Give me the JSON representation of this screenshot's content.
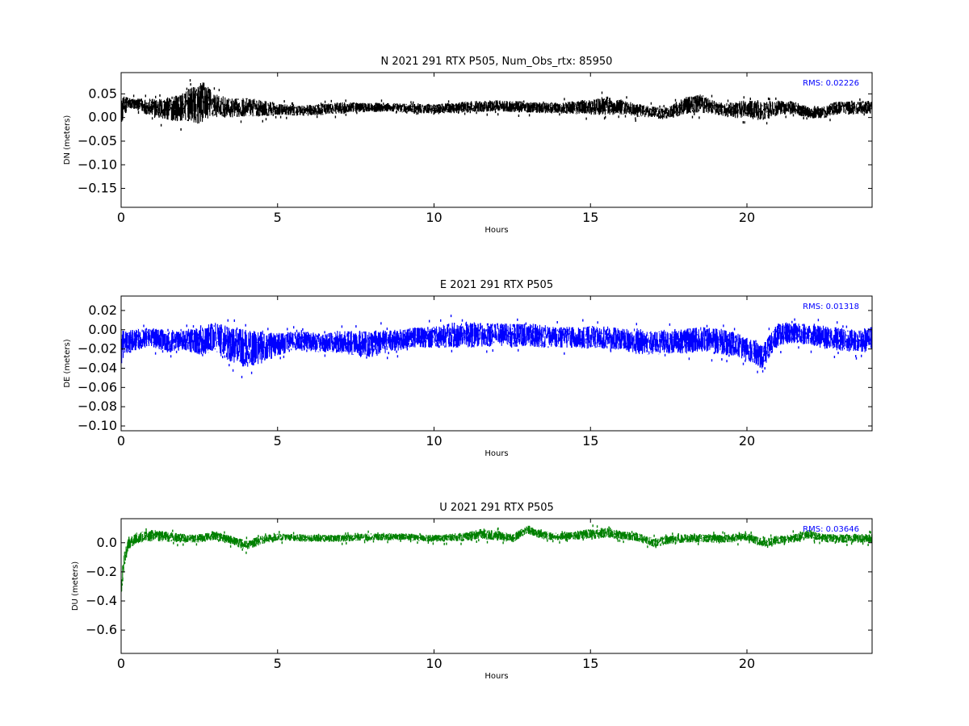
{
  "chart_data": [
    {
      "type": "scatter",
      "title": "N 2021 291 RTX  P505, Num_Obs_rtx: 85950",
      "xlabel": "Hours",
      "ylabel": "DN (meters)",
      "xlim": [
        0,
        24
      ],
      "ylim": [
        -0.19,
        0.095
      ],
      "xticks": [
        0,
        5,
        10,
        15,
        20
      ],
      "xtick_labels": [
        "0",
        "5",
        "10",
        "15",
        "20"
      ],
      "yticks": [
        0.05,
        0.0,
        -0.05,
        -0.1,
        -0.15
      ],
      "ytick_labels": [
        "0.05",
        "0.00",
        "−0.05",
        "−0.10",
        "−0.15"
      ],
      "color": "#000000",
      "annotation": "RMS:  0.02226",
      "annotation_color": "#0000ff",
      "grid": false,
      "series": [
        {
          "x": [
            0,
            0.1,
            0.2,
            0.5,
            1,
            1.5,
            2,
            2.5,
            2.7,
            3,
            3.5,
            4,
            4.5,
            5,
            6,
            7,
            8,
            9,
            10,
            11,
            12,
            13,
            14,
            15,
            15.5,
            16,
            16.5,
            17,
            17.5,
            18,
            18.5,
            19,
            19.5,
            20,
            20.5,
            21,
            21.5,
            22,
            22.5,
            23,
            23.5,
            24
          ],
          "y": [
            0.01,
            0.025,
            0.03,
            0.028,
            0.02,
            0.018,
            0.022,
            0.03,
            0.035,
            0.025,
            0.02,
            0.022,
            0.02,
            0.017,
            0.015,
            0.02,
            0.022,
            0.02,
            0.018,
            0.022,
            0.025,
            0.022,
            0.02,
            0.022,
            0.025,
            0.022,
            0.015,
            0.012,
            0.008,
            0.025,
            0.03,
            0.02,
            0.015,
            0.018,
            0.012,
            0.02,
            0.02,
            0.01,
            0.012,
            0.022,
            0.02,
            0.022
          ],
          "spread": [
            0.03,
            0.02,
            0.014,
            0.012,
            0.02,
            0.025,
            0.03,
            0.045,
            0.04,
            0.025,
            0.02,
            0.02,
            0.018,
            0.012,
            0.012,
            0.012,
            0.01,
            0.01,
            0.01,
            0.012,
            0.012,
            0.012,
            0.012,
            0.016,
            0.02,
            0.016,
            0.014,
            0.012,
            0.014,
            0.018,
            0.02,
            0.014,
            0.016,
            0.02,
            0.02,
            0.016,
            0.014,
            0.012,
            0.014,
            0.014,
            0.014,
            0.014
          ]
        }
      ]
    },
    {
      "type": "scatter",
      "title": "E 2021 291 RTX  P505",
      "xlabel": "Hours",
      "ylabel": "DE (meters)",
      "xlim": [
        0,
        24
      ],
      "ylim": [
        -0.105,
        0.035
      ],
      "xticks": [
        0,
        5,
        10,
        15,
        20
      ],
      "xtick_labels": [
        "0",
        "5",
        "10",
        "15",
        "20"
      ],
      "yticks": [
        0.02,
        0.0,
        -0.02,
        -0.04,
        -0.06,
        -0.08,
        -0.1
      ],
      "ytick_labels": [
        "0.02",
        "0.00",
        "−0.02",
        "−0.04",
        "−0.06",
        "−0.08",
        "−0.10"
      ],
      "color": "#0000ff",
      "annotation": "RMS:  0.01318",
      "annotation_color": "#0000ff",
      "grid": false,
      "series": [
        {
          "x": [
            0,
            0.1,
            0.3,
            0.5,
            1,
            1.5,
            2,
            2.5,
            3,
            3.5,
            4,
            4.5,
            5,
            5.5,
            6,
            6.5,
            7,
            7.5,
            8,
            8.5,
            9,
            9.5,
            10,
            10.5,
            11,
            11.5,
            12,
            12.5,
            13,
            13.5,
            14,
            14.5,
            15,
            15.5,
            16,
            16.5,
            17,
            17.5,
            18,
            18.5,
            19,
            19.5,
            20,
            20.5,
            21,
            21.5,
            22,
            22.5,
            23,
            23.5,
            24
          ],
          "y": [
            -0.02,
            -0.015,
            -0.012,
            -0.01,
            -0.008,
            -0.012,
            -0.01,
            -0.012,
            -0.008,
            -0.015,
            -0.02,
            -0.018,
            -0.015,
            -0.012,
            -0.012,
            -0.015,
            -0.012,
            -0.015,
            -0.015,
            -0.012,
            -0.01,
            -0.008,
            -0.008,
            -0.006,
            -0.005,
            -0.006,
            -0.005,
            -0.006,
            -0.005,
            -0.007,
            -0.008,
            -0.008,
            -0.008,
            -0.008,
            -0.01,
            -0.012,
            -0.014,
            -0.012,
            -0.012,
            -0.01,
            -0.012,
            -0.014,
            -0.02,
            -0.028,
            -0.005,
            -0.003,
            -0.005,
            -0.008,
            -0.01,
            -0.012,
            -0.01
          ],
          "spread": [
            0.02,
            0.014,
            0.012,
            0.011,
            0.01,
            0.012,
            0.011,
            0.014,
            0.016,
            0.018,
            0.02,
            0.018,
            0.012,
            0.01,
            0.01,
            0.01,
            0.012,
            0.014,
            0.014,
            0.012,
            0.011,
            0.011,
            0.011,
            0.013,
            0.014,
            0.013,
            0.012,
            0.012,
            0.012,
            0.012,
            0.011,
            0.011,
            0.012,
            0.012,
            0.011,
            0.014,
            0.012,
            0.013,
            0.013,
            0.013,
            0.014,
            0.013,
            0.012,
            0.013,
            0.012,
            0.011,
            0.011,
            0.012,
            0.012,
            0.012,
            0.013
          ]
        }
      ]
    },
    {
      "type": "scatter",
      "title": "U 2021 291 RTX  P505",
      "xlabel": "Hours",
      "ylabel": "DU (meters)",
      "xlim": [
        0,
        24
      ],
      "ylim": [
        -0.76,
        0.165
      ],
      "xticks": [
        0,
        5,
        10,
        15,
        20
      ],
      "xtick_labels": [
        "0",
        "5",
        "10",
        "15",
        "20"
      ],
      "yticks": [
        0.0,
        -0.2,
        -0.4,
        -0.6
      ],
      "ytick_labels": [
        "0.0",
        "−0.2",
        "−0.4",
        "−0.6"
      ],
      "color": "#008000",
      "annotation": "RMS:  0.03646",
      "annotation_color": "#0000ff",
      "grid": false,
      "series": [
        {
          "x": [
            0,
            0.1,
            0.2,
            0.4,
            0.6,
            1,
            1.5,
            2,
            2.5,
            3,
            3.5,
            4,
            4.5,
            5,
            6,
            7,
            8,
            9,
            10,
            11,
            11.5,
            12,
            12.5,
            13,
            13.5,
            14,
            14.5,
            15,
            15.5,
            16,
            16.5,
            17,
            17.5,
            18,
            18.5,
            19,
            19.5,
            20,
            20.5,
            21,
            21.5,
            22,
            22.5,
            23,
            23.5,
            24
          ],
          "y": [
            -0.3,
            -0.12,
            -0.02,
            0.02,
            0.04,
            0.05,
            0.04,
            0.03,
            0.03,
            0.05,
            0.02,
            -0.02,
            0.02,
            0.04,
            0.03,
            0.03,
            0.04,
            0.04,
            0.03,
            0.04,
            0.06,
            0.05,
            0.03,
            0.09,
            0.05,
            0.04,
            0.05,
            0.06,
            0.07,
            0.05,
            0.04,
            0.0,
            0.02,
            0.03,
            0.03,
            0.03,
            0.03,
            0.04,
            0.0,
            0.02,
            0.03,
            0.06,
            0.03,
            0.03,
            0.03,
            0.03
          ],
          "spread": [
            0.08,
            0.05,
            0.04,
            0.04,
            0.04,
            0.04,
            0.035,
            0.03,
            0.03,
            0.03,
            0.03,
            0.035,
            0.03,
            0.025,
            0.025,
            0.025,
            0.025,
            0.025,
            0.025,
            0.03,
            0.035,
            0.035,
            0.03,
            0.03,
            0.03,
            0.025,
            0.03,
            0.035,
            0.035,
            0.03,
            0.03,
            0.03,
            0.03,
            0.03,
            0.03,
            0.03,
            0.03,
            0.03,
            0.03,
            0.03,
            0.03,
            0.03,
            0.03,
            0.03,
            0.03,
            0.03
          ]
        }
      ]
    }
  ]
}
